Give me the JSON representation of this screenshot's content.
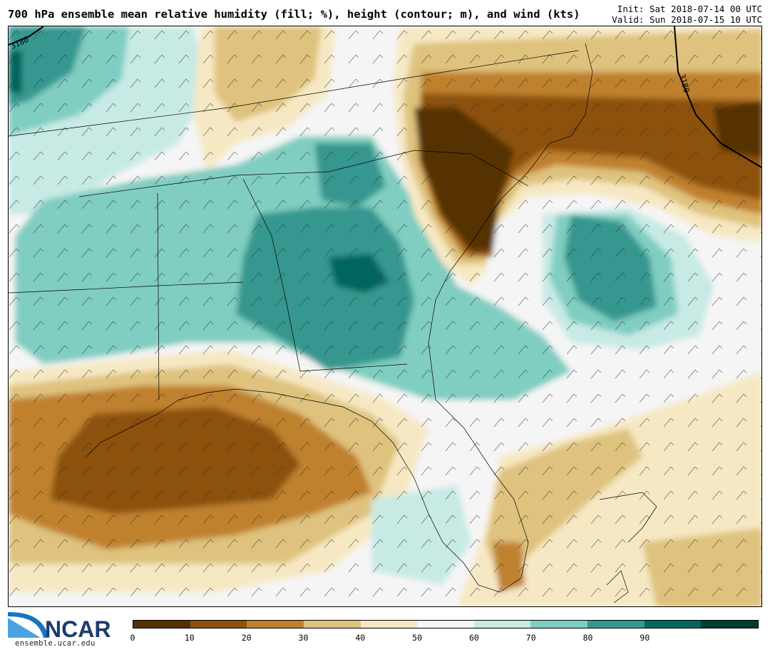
{
  "header": {
    "title": "700 hPa ensemble mean relative humidity (fill; %), height (contour; m), and wind (kts)",
    "init": "Init: Sat 2018-07-14 00 UTC",
    "valid": "Valid: Sun 2018-07-15 10 UTC"
  },
  "map": {
    "contour_labels": [
      "3180",
      "3180"
    ]
  },
  "colorbar": {
    "colors": [
      "#543005",
      "#8c510a",
      "#bf812d",
      "#dfc27d",
      "#f6e8c3",
      "#f5f5f5",
      "#c7eae5",
      "#80cdc1",
      "#35978f",
      "#01665e",
      "#003c30"
    ],
    "ticks": [
      "0",
      "10",
      "20",
      "30",
      "40",
      "50",
      "60",
      "70",
      "80",
      "90"
    ]
  },
  "logo": {
    "text": "NCAR",
    "url": "ensemble.ucar.edu"
  }
}
